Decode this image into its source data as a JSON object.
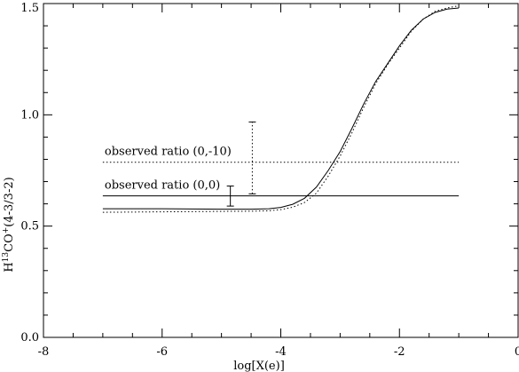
{
  "chart_data": {
    "type": "line",
    "xlabel": "log[X(e)]",
    "ylabel": "H13CO+(4-3/3-2)",
    "ylabel_parts": {
      "base1": "H",
      "sup1": "13",
      "base2": "CO",
      "sup2": "+",
      "tail": "(4-3/3-2)"
    },
    "xlim": [
      -8,
      0
    ],
    "ylim": [
      0.0,
      1.5
    ],
    "x_ticks": [
      -8,
      -6,
      -4,
      -2,
      0
    ],
    "x_tick_labels": [
      "-8",
      "-6",
      "-4",
      "-2",
      "0"
    ],
    "y_ticks": [
      0.0,
      0.5,
      1.0,
      1.5
    ],
    "y_tick_labels": [
      "0.0",
      "0.5",
      "1.0",
      "1.5"
    ],
    "grid": false,
    "series": [
      {
        "style": "solid",
        "x": [
          -7.0,
          -6.0,
          -5.0,
          -4.5,
          -4.2,
          -4.0,
          -3.8,
          -3.6,
          -3.4,
          -3.2,
          -3.0,
          -2.8,
          -2.6,
          -2.4,
          -2.2,
          -2.0,
          -1.8,
          -1.6,
          -1.4,
          -1.2,
          -1.0
        ],
        "y": [
          0.578,
          0.578,
          0.576,
          0.576,
          0.578,
          0.584,
          0.598,
          0.625,
          0.675,
          0.75,
          0.835,
          0.94,
          1.05,
          1.15,
          1.23,
          1.31,
          1.38,
          1.43,
          1.46,
          1.475,
          1.48
        ]
      },
      {
        "style": "dotted",
        "x": [
          -7.0,
          -6.0,
          -5.0,
          -4.5,
          -4.2,
          -4.0,
          -3.8,
          -3.6,
          -3.4,
          -3.2,
          -3.0,
          -2.8,
          -2.6,
          -2.4,
          -2.2,
          -2.0,
          -1.8,
          -1.6,
          -1.4,
          -1.2,
          -1.0
        ],
        "y": [
          0.562,
          0.564,
          0.566,
          0.567,
          0.569,
          0.574,
          0.585,
          0.606,
          0.648,
          0.725,
          0.815,
          0.92,
          1.035,
          1.14,
          1.225,
          1.3,
          1.375,
          1.43,
          1.465,
          1.48,
          1.49
        ]
      }
    ],
    "reference_lines": [
      {
        "label": "observed ratio (0,-10)",
        "y": 0.787,
        "x_range": [
          -7.0,
          -1.0
        ],
        "style": "dotted"
      },
      {
        "label": "observed ratio (0,0)",
        "y": 0.636,
        "x_range": [
          -7.0,
          -1.0
        ],
        "style": "solid"
      }
    ],
    "error_bars": [
      {
        "x": -4.85,
        "y_low": 0.59,
        "y_high": 0.68,
        "style": "solid"
      },
      {
        "x": -4.48,
        "y_low": 0.645,
        "y_high": 0.968,
        "style": "dotted"
      }
    ]
  }
}
